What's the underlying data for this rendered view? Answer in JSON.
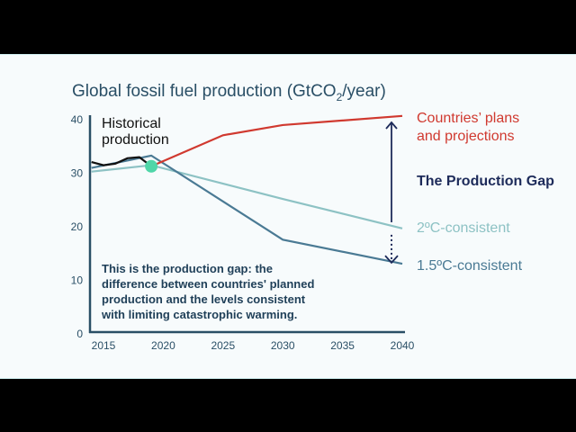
{
  "chart_data": {
    "type": "line",
    "title": "Global fossil fuel production (GtCO",
    "title_sub": "2",
    "title_end": "/year)",
    "xlim": [
      2014,
      2040
    ],
    "ylim": [
      0,
      40
    ],
    "x_ticks": [
      2015,
      2020,
      2025,
      2030,
      2035,
      2040
    ],
    "y_ticks": [
      0,
      10,
      20,
      30,
      40
    ],
    "grid": false,
    "series": [
      {
        "name": "Historical production",
        "color": "#111111",
        "points": [
          [
            2014,
            32.1
          ],
          [
            2015,
            31.5
          ],
          [
            2016,
            31.8
          ],
          [
            2017,
            32.8
          ],
          [
            2018,
            33.0
          ],
          [
            2019,
            31.3
          ]
        ]
      },
      {
        "name": "Countries’ plans and projections",
        "color": "#d0392f",
        "points": [
          [
            2019,
            31.3
          ],
          [
            2025,
            37.1
          ],
          [
            2030,
            39.0
          ],
          [
            2040,
            40.7
          ]
        ]
      },
      {
        "name": "2ºC-consistent",
        "color": "#8dc2c4",
        "points": [
          [
            2014,
            30.3
          ],
          [
            2019,
            31.5
          ],
          [
            2030,
            25.2
          ],
          [
            2040,
            19.7
          ]
        ]
      },
      {
        "name": "1.5ºC-consistent",
        "color": "#4a7a94",
        "points": [
          [
            2014,
            31.0
          ],
          [
            2019,
            33.3
          ],
          [
            2030,
            17.6
          ],
          [
            2040,
            13.1
          ]
        ]
      }
    ],
    "labels": {
      "historical": [
        "Historical",
        "production"
      ],
      "plans": [
        "Countries’ plans",
        "and projections"
      ],
      "gap": "The Production Gap",
      "two": "2ºC-consistent",
      "onefive": "1.5ºC-consistent"
    },
    "marker": {
      "x": 2019,
      "y": 31.3,
      "color": "#4fd6a8"
    },
    "gap_arrow_color": "#1d2b5a",
    "annotation": [
      "This is the production gap: the",
      "difference between countries' planned",
      "production and the levels consistent",
      "with limiting catastrophic warming."
    ]
  }
}
